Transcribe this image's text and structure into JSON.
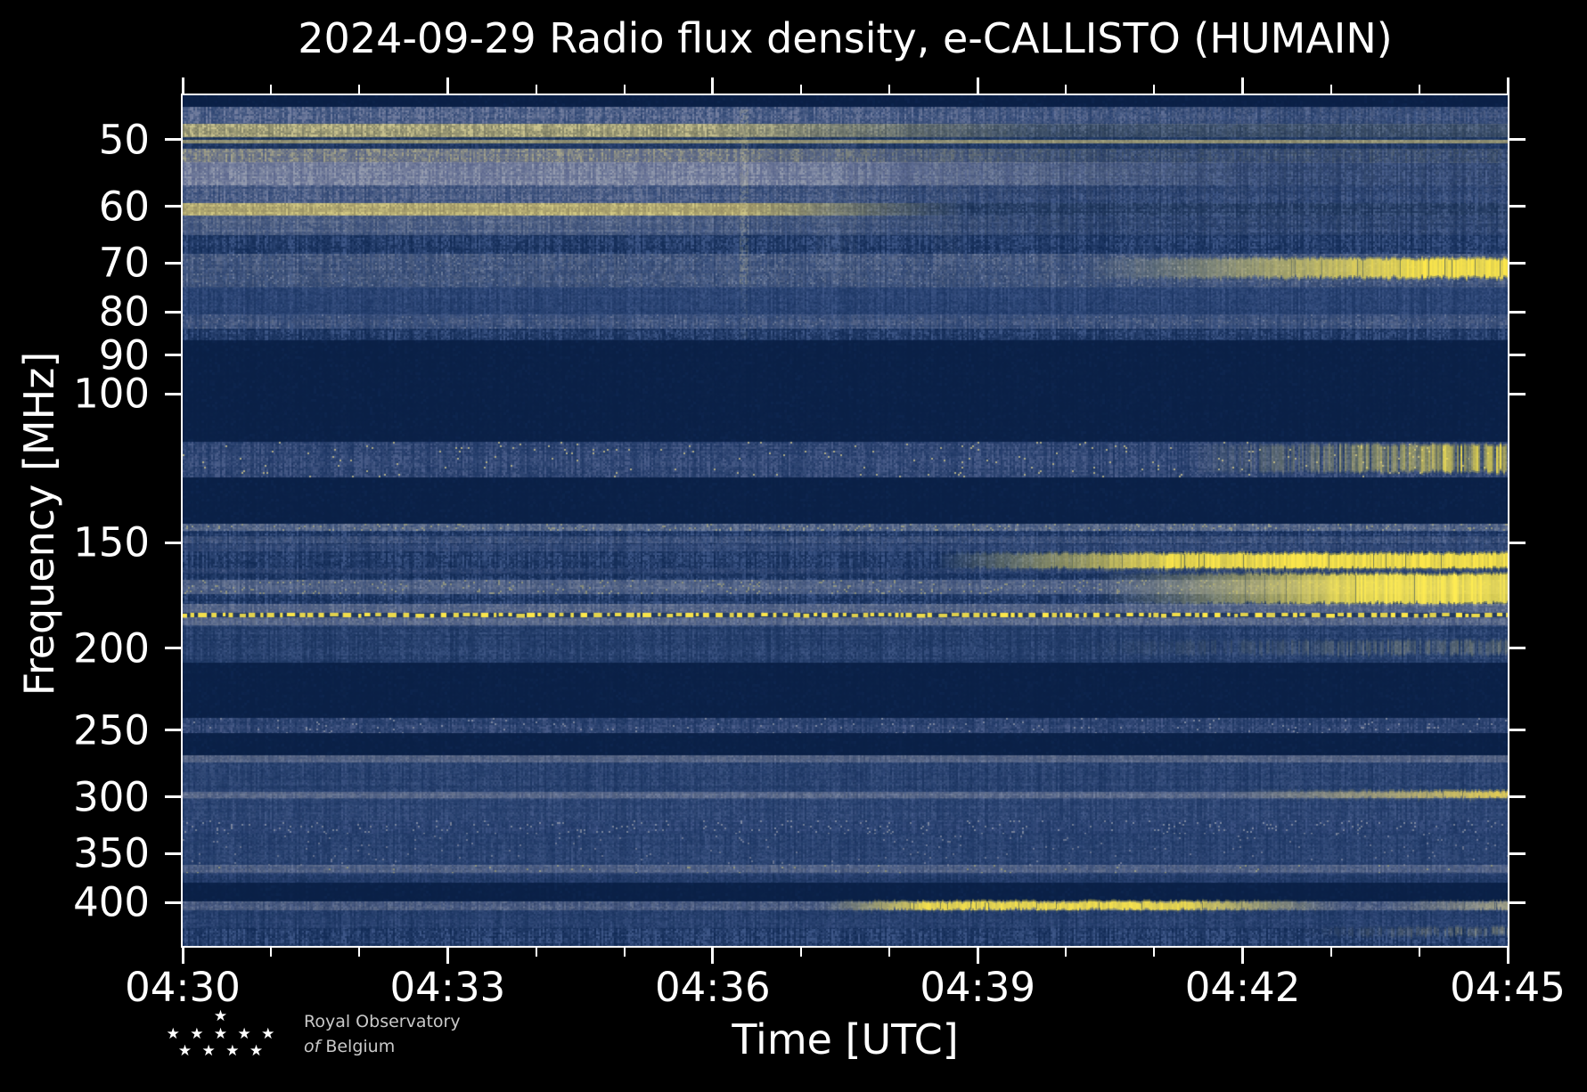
{
  "chart_data": {
    "type": "heatmap",
    "subtype": "radio-spectrogram",
    "title": "2024-09-29 Radio flux density, e-CALLISTO (HUMAIN)",
    "xlabel": "Time [UTC]",
    "ylabel": "Frequency [MHz]",
    "x_range_utc": [
      "04:30",
      "04:45"
    ],
    "duration_min": 15,
    "x_tick_labels": [
      "04:30",
      "04:33",
      "04:36",
      "04:39",
      "04:42",
      "04:45"
    ],
    "x_tick_minutes": [
      0,
      3,
      6,
      9,
      12,
      15
    ],
    "x_minor_tick_minutes": [
      1,
      2,
      4,
      5,
      7,
      8,
      10,
      11,
      13,
      14
    ],
    "y_scale": "log",
    "y_tick_freqs_mhz": [
      50,
      60,
      70,
      80,
      90,
      100,
      150,
      200,
      250,
      300,
      350,
      400
    ],
    "freq_top_mhz": 44.3,
    "freq_bottom_mhz": 450,
    "legend": "none",
    "grid": "off",
    "palette": {
      "background": "#000000",
      "quiet_navy": "#0a2046",
      "speckle_dark": "#0d2650",
      "speckle_light": "#3d5687",
      "gray_band": "#9aa0b0",
      "pale_yellow": "#d9cf8f",
      "bright_yellow": "#ffe94a",
      "axis": "#ffffff"
    },
    "bands": [
      {
        "f": [
          44.3,
          45.7
        ],
        "s": "quiet",
        "c0": "#0a1f44",
        "note": "dark strip at top edge"
      },
      {
        "f": [
          45.7,
          47.9
        ],
        "s": "speck",
        "c0": "#26406f",
        "c1": "#8089a8",
        "a": 0.85,
        "fade": [
          6,
          12.5
        ],
        "floor": 0.55,
        "note": "noisy gray-blue 46-48 MHz"
      },
      {
        "f": [
          47.9,
          49.7
        ],
        "s": "speck",
        "c0": "#7a7a5e",
        "c1": "#dbd192",
        "a": 0.9,
        "fade": [
          5.8,
          9.8
        ],
        "floor": 0.22,
        "note": "pale yellow band ~49 MHz fading after 04:36"
      },
      {
        "f": [
          49.7,
          51.2
        ],
        "s": "speck",
        "c0": "#10294f",
        "c1": "#2e4674",
        "a": 0.9,
        "note": "dark lane at 50 MHz"
      },
      {
        "f": [
          50.05,
          50.55
        ],
        "s": "speck",
        "c0": "#9e9668",
        "c1": "#d6cc8e",
        "a": 0.75,
        "note": "thin persistent line just above 50 MHz"
      },
      {
        "f": [
          51.2,
          53.2
        ],
        "s": "speck",
        "c0": "#55618c",
        "c1": "#c3bb90",
        "a": 0.8,
        "fade": [
          5.5,
          10.5
        ],
        "floor": 0.3
      },
      {
        "f": [
          53.2,
          56.6
        ],
        "s": "speck",
        "c0": "#5e6890",
        "c1": "#a9adbb",
        "a": 0.85,
        "fade": [
          6.5,
          12.5
        ],
        "floor": 0.22,
        "note": "bright gray band 54-56 MHz"
      },
      {
        "f": [
          56.6,
          59.4
        ],
        "s": "speck",
        "c0": "#2c4474",
        "c1": "#8a92ae",
        "a": 0.7,
        "fade": [
          5,
          10
        ],
        "floor": 0.35
      },
      {
        "f": [
          59.4,
          61.5
        ],
        "s": "speck",
        "c0": "#9a9060",
        "c1": "#e2d586",
        "a": 0.92,
        "fade": [
          6.3,
          8.8
        ],
        "floor": 0.06,
        "note": "bright 60 MHz band, gone after ~04:39"
      },
      {
        "f": [
          61.5,
          64.8
        ],
        "s": "speck",
        "c0": "#3f537f",
        "c1": "#9ba1b2",
        "a": 0.6,
        "fade": [
          5,
          10.5
        ],
        "floor": 0.3
      },
      {
        "f": [
          68.3,
          71.9
        ],
        "s": "speck",
        "c0": "#344b7a",
        "c1": "#8d94a9",
        "a": 0.5,
        "fl": "#aab0be",
        "fd": 0.04,
        "note": "gray flecked rows ~70 MHz"
      },
      {
        "f": [
          71.9,
          74.7
        ],
        "s": "speck",
        "c0": "#3d537f",
        "c1": "#959aad",
        "a": 0.45,
        "fl": "#b6bac4",
        "fd": 0.05
      },
      {
        "f": [
          74.7,
          80.4
        ],
        "s": "speck",
        "c0": "#1c3766",
        "c1": "#41598a",
        "a": 0.6
      },
      {
        "f": [
          80.4,
          83.7
        ],
        "s": "speck",
        "c0": "#30497a",
        "c1": "#868ea9",
        "a": 0.5,
        "fl": "#9fa5b6",
        "fd": 0.03
      },
      {
        "f": [
          86.3,
          114.0
        ],
        "s": "quiet",
        "c0": "#0a2046",
        "note": "quiet FM gap 87-108 MHz"
      },
      {
        "f": [
          114.0,
          125.5
        ],
        "s": "speck",
        "c0": "#17315f",
        "c1": "#50628e",
        "a": 0.85,
        "fl": "#c9c18c",
        "fd": 0.012,
        "note": "115-125 MHz channel noise"
      },
      {
        "f": [
          115.0,
          123.5
        ],
        "s": "burst",
        "c0": "#d8cd88",
        "c1": "#ffe94a",
        "ramp": [
          11.3,
          14.7
        ],
        "streaky": true,
        "note": "yellow streaks growing to right edge"
      },
      {
        "f": [
          125.5,
          142.3
        ],
        "s": "quiet",
        "c0": "#0a2046"
      },
      {
        "f": [
          142.3,
          145.2
        ],
        "s": "speck",
        "c0": "#3e5480",
        "c1": "#9aa0ae",
        "a": 0.6,
        "fl": "#ddd395",
        "fd": 0.06,
        "note": "dotted line ~143 MHz"
      },
      {
        "f": [
          147.3,
          149.8
        ],
        "s": "speck",
        "c0": "#2c4573",
        "c1": "#7e87a5",
        "a": 0.45
      },
      {
        "f": [
          150.5,
          153.5
        ],
        "s": "speck",
        "c0": "#223c6c",
        "c1": "#5a6a94",
        "a": 0.5
      },
      {
        "f": [
          154.8,
          160.7
        ],
        "s": "burst",
        "c0": "#e8dc86",
        "c1": "#ffe94a",
        "ramp": [
          8.5,
          11.2
        ],
        "note": "bright burst band 155-160 MHz from ~04:38.5"
      },
      {
        "f": [
          160.7,
          163.2
        ],
        "s": "speck",
        "c0": "#1a3463",
        "c1": "#5e6c94",
        "a": 0.55,
        "note": "thin dark lane between bursts"
      },
      {
        "f": [
          165.9,
          171.9
        ],
        "s": "speck",
        "c0": "#4a5c85",
        "c1": "#979dae",
        "a": 0.6,
        "fl": "#d2c98e",
        "fd": 0.05,
        "note": "gray rows 166-172 MHz"
      },
      {
        "f": [
          163.4,
          176.6
        ],
        "s": "burst",
        "c0": "#cfc68d",
        "c1": "#ffec52",
        "ramp": [
          10.3,
          13.3
        ],
        "note": "wide bright band from ~04:40.5 to right edge"
      },
      {
        "f": [
          177.0,
          181.3
        ],
        "s": "speck",
        "c0": "#50618a",
        "c1": "#9aa0b0",
        "a": 0.65
      },
      {
        "f": [
          181.3,
          183.9
        ],
        "s": "dots",
        "c0": "#ffe94a",
        "bg": "#22395f",
        "note": "dashed yellow line ~183 MHz across full width"
      },
      {
        "f": [
          183.9,
          187.9
        ],
        "s": "speck",
        "c0": "#55648c",
        "c1": "#969cac",
        "a": 0.6
      },
      {
        "f": [
          187.9,
          208.0
        ],
        "s": "speck",
        "c0": "#142e59",
        "c1": "#3e5685",
        "a": 0.8,
        "note": "textured 188-208 MHz"
      },
      {
        "f": [
          196.0,
          203.0
        ],
        "s": "burst",
        "c0": "#b8ae7c",
        "c1": "#d9cd86",
        "ramp": [
          10,
          14.5
        ],
        "amax": 0.4,
        "streaky": true
      },
      {
        "f": [
          208.0,
          241.6
        ],
        "s": "quiet",
        "c0": "#0a2046"
      },
      {
        "f": [
          241.6,
          252.1
        ],
        "s": "speck",
        "c0": "#16305d",
        "c1": "#51628e",
        "a": 0.8,
        "fl": "#9298aa",
        "fd": 0.02,
        "note": "speckle band ~250 MHz"
      },
      {
        "f": [
          252.1,
          267.6
        ],
        "s": "quiet",
        "c0": "#0a2046"
      },
      {
        "f": [
          267.6,
          272.7
        ],
        "s": "speck",
        "c0": "#5a6788",
        "c1": "#9297a8",
        "a": 0.6,
        "note": "gray row ~270 MHz"
      },
      {
        "f": [
          272.7,
          295.6
        ],
        "s": "speck",
        "c0": "#18325f",
        "c1": "#405785",
        "a": 0.7
      },
      {
        "f": [
          295.6,
          300.9
        ],
        "s": "speck",
        "c0": "#5a678a",
        "c1": "#999eae",
        "a": 0.6,
        "note": "gray row ~298 MHz"
      },
      {
        "f": [
          295.6,
          300.9
        ],
        "s": "burst",
        "c0": "#d9c97e",
        "c1": "#f7dd4e",
        "ramp": [
          11.8,
          14.9
        ],
        "amax": 0.9,
        "note": "gold at right edge ~300 MHz"
      },
      {
        "f": [
          300.9,
          319.6
        ],
        "s": "speck",
        "c0": "#1d3765",
        "c1": "#475d8b",
        "a": 0.7
      },
      {
        "f": [
          319.6,
          331.6
        ],
        "s": "speck",
        "c0": "#1b3563",
        "c1": "#44598a",
        "a": 0.7,
        "fl": "#9aa0ae",
        "fd": 0.04
      },
      {
        "f": [
          331.6,
          360.6
        ],
        "s": "speck",
        "c0": "#1a3462",
        "c1": "#3f5684",
        "a": 0.7,
        "fl": "#868da2",
        "fd": 0.015
      },
      {
        "f": [
          360.6,
          368.7
        ],
        "s": "speck",
        "c0": "#52628a",
        "c1": "#9297a9",
        "a": 0.55,
        "fl": "#e3d88c",
        "fd": 0.015,
        "note": "gray row ~365 MHz"
      },
      {
        "f": [
          368.7,
          378.7
        ],
        "s": "speck",
        "c0": "#142e58",
        "c1": "#32497a",
        "a": 0.7
      },
      {
        "f": [
          378.7,
          398.7
        ],
        "s": "quiet",
        "c0": "#0a2046",
        "note": "quiet lane ~380-400 MHz"
      },
      {
        "f": [
          398.7,
          408.7
        ],
        "s": "speck",
        "c0": "#44547e",
        "c1": "#8f95a8",
        "a": 0.55,
        "note": "row ~405 MHz"
      },
      {
        "f": [
          399.7,
          407.7
        ],
        "s": "burst",
        "c0": "#e5d87f",
        "c1": "#ffe94a",
        "ramp": [
          7.2,
          8.4
        ],
        "fade": [
          11.3,
          13.1
        ],
        "floor": 0,
        "amax": 0.95,
        "note": "bright segment 04:37-04:42 at ~405 MHz"
      },
      {
        "f": [
          399.7,
          407.7
        ],
        "s": "burst",
        "c0": "#cec189",
        "c1": "#e8d98a",
        "ramp": [
          13.6,
          15
        ],
        "amax": 0.6
      },
      {
        "f": [
          408.7,
          427.2
        ],
        "s": "speck",
        "c0": "#16305c",
        "c1": "#3a5180",
        "a": 0.7
      },
      {
        "f": [
          429.0,
          437.0
        ],
        "s": "burst",
        "c0": "#b9ae80",
        "c1": "#d6c988",
        "ramp": [
          12.6,
          15
        ],
        "amax": 0.55,
        "streaky": true
      },
      {
        "f": [
          69.3,
          72.7
        ],
        "s": "burst",
        "c0": "#e6da84",
        "c1": "#ffe94a",
        "ramp": [
          10.2,
          13.9
        ],
        "note": "70 MHz band appearing ~04:40, brightest at 04:45"
      }
    ],
    "streaks": [
      {
        "t": 6.35,
        "w": 0.09,
        "f": [
          46,
          74
        ],
        "c": "#d3cc9e",
        "a": 0.3,
        "note": "narrow vertical feature ~04:36.3"
      },
      {
        "t": 6.35,
        "w": 0.07,
        "f": [
          74,
          86
        ],
        "c": "#c8c9b0",
        "a": 0.12
      },
      {
        "t": 7.4,
        "w": 0.45,
        "f": [
          50,
          73
        ],
        "c": "#aab1c2",
        "a": 0.12,
        "note": "faint broad lightening ~04:37.5"
      },
      {
        "t": 8.65,
        "w": 0.3,
        "f": [
          48,
          70
        ],
        "c": "#a8aec0",
        "a": 0.1
      }
    ]
  },
  "logo": {
    "line1": "Royal Observatory",
    "line2_prefix": "of",
    "line2": "Belgium",
    "stars_rows": [
      1,
      5,
      4
    ],
    "star_glyph": "★"
  }
}
